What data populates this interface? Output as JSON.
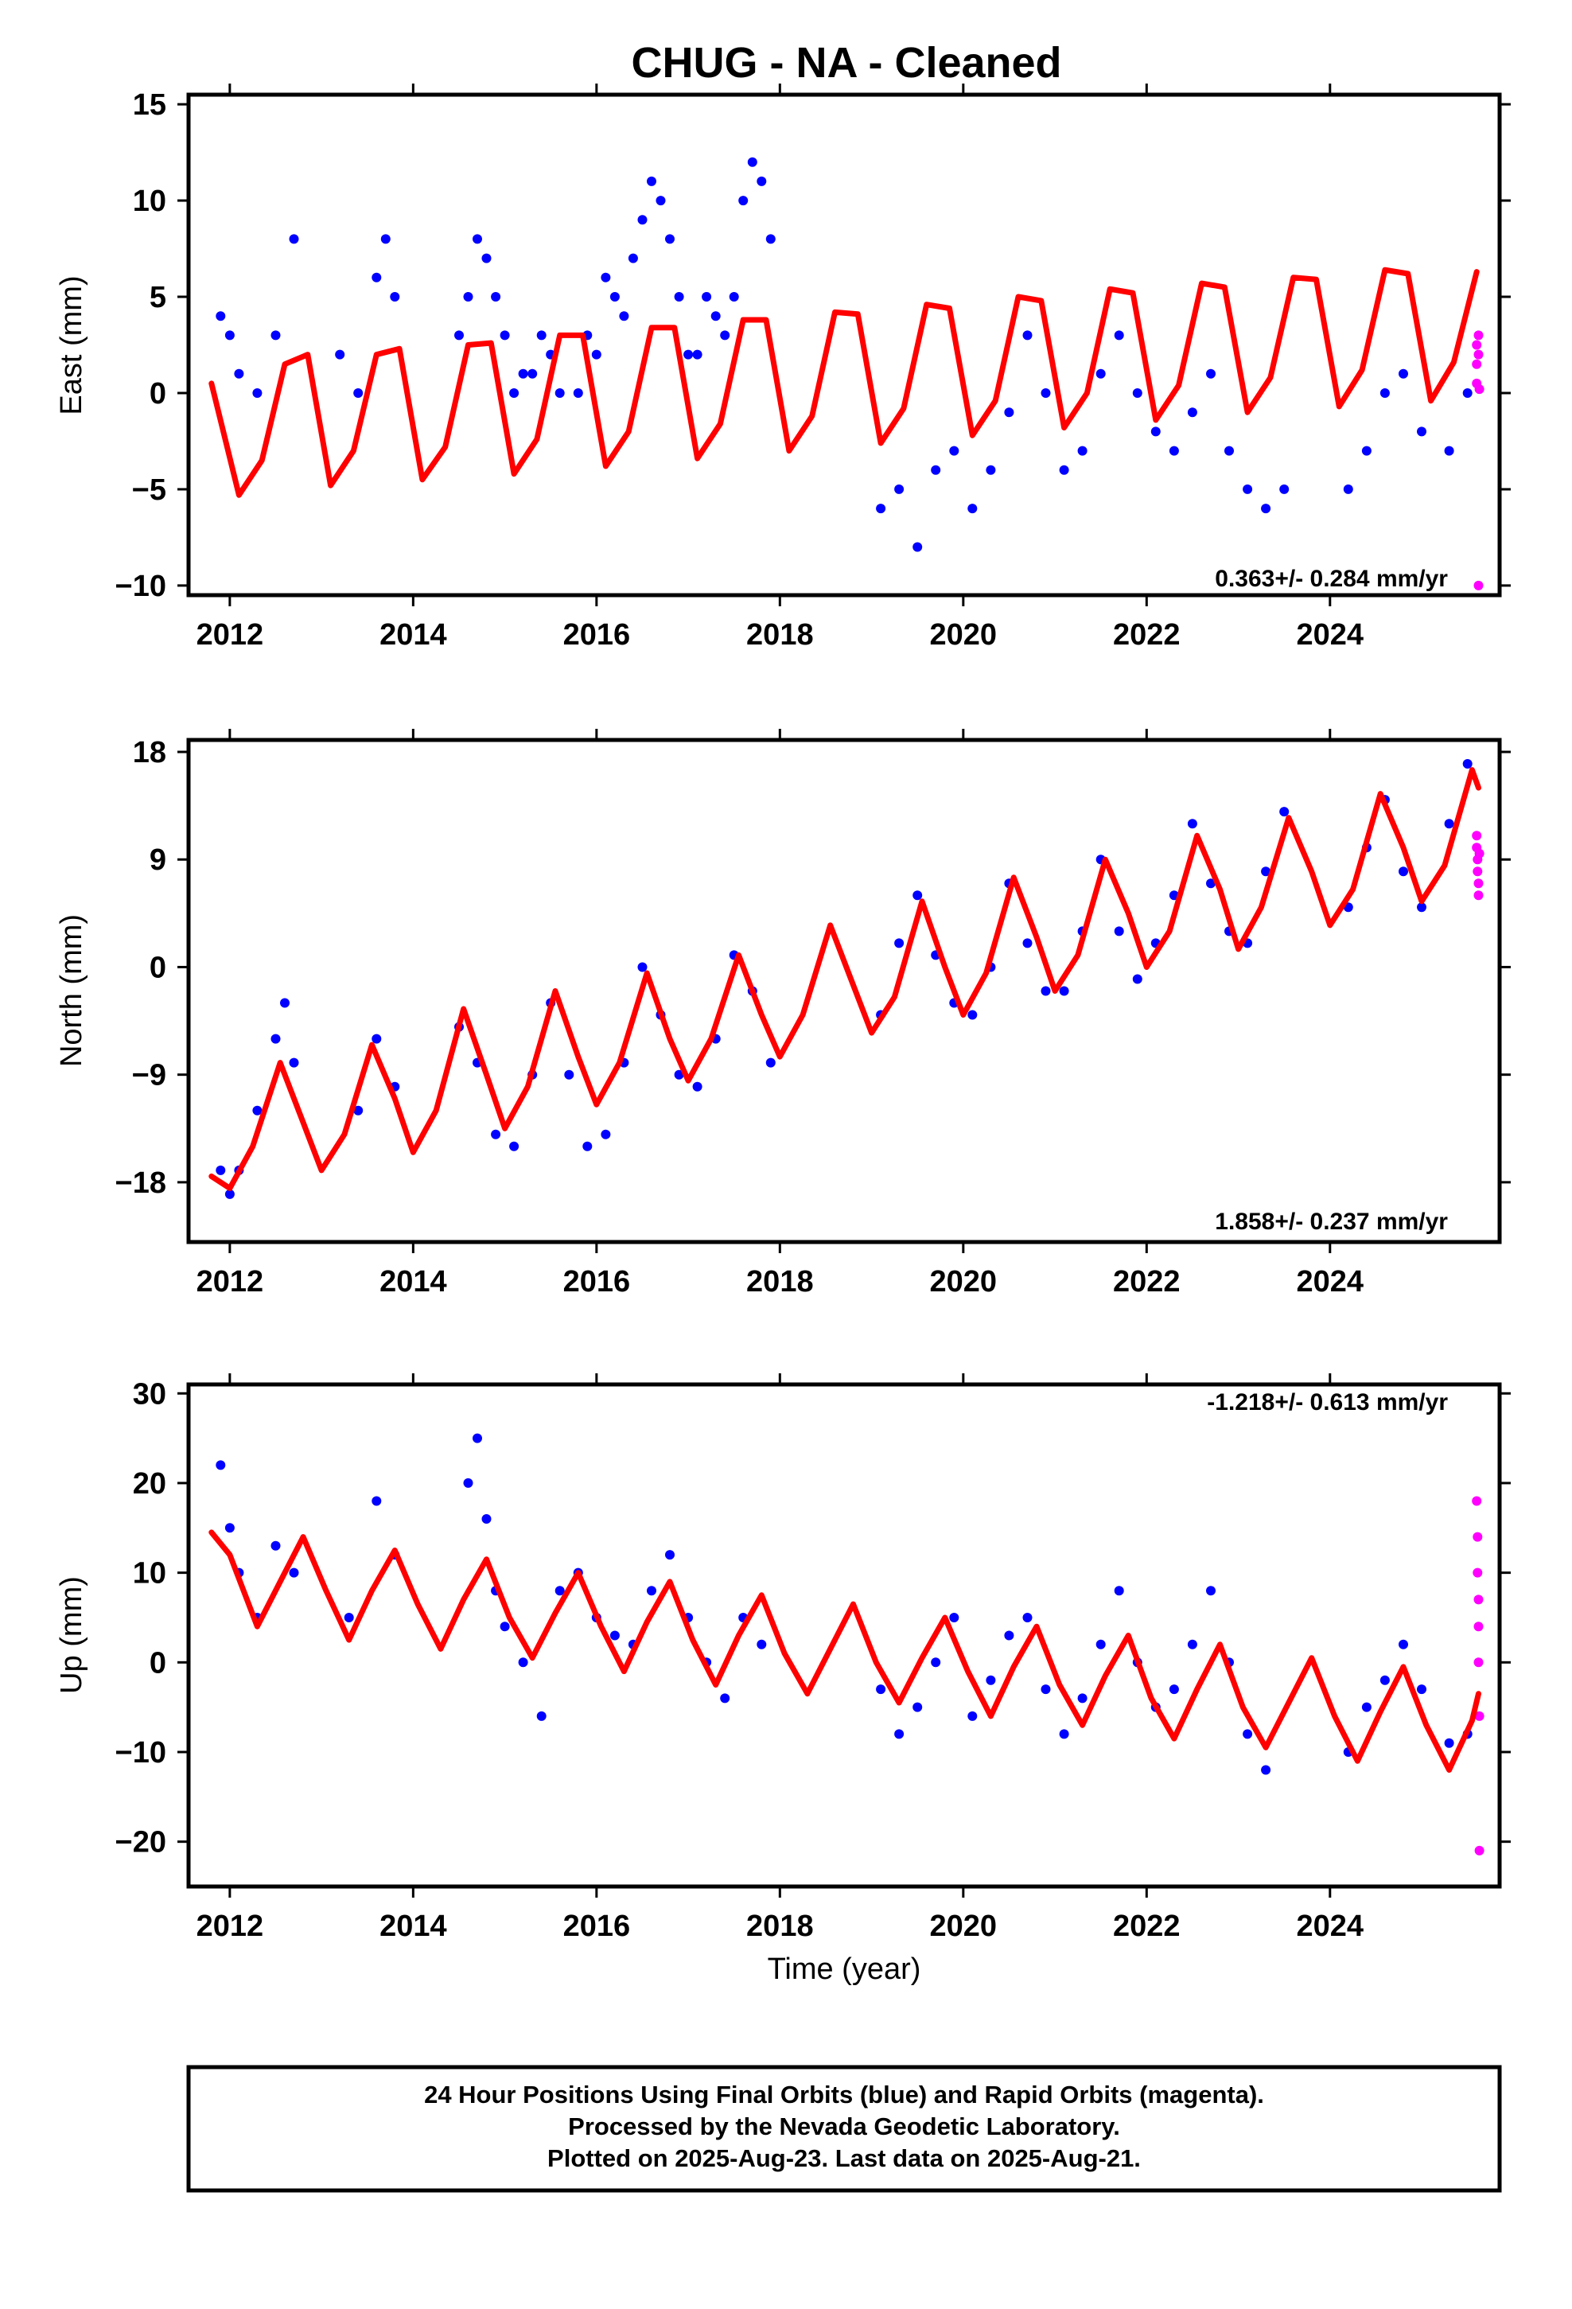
{
  "title": "CHUG  - NA - Cleaned",
  "xlabel": "Time (year)",
  "footer_lines": [
    "24 Hour Positions Using Final Orbits (blue) and Rapid Orbits (magenta).",
    "Processed by the Nevada Geodetic Laboratory.",
    "Plotted on 2025-Aug-23. Last data on 2025-Aug-21."
  ],
  "colors": {
    "final": "#0000ff",
    "rapid": "#ff00ff",
    "model": "#ff0000",
    "frame": "#000000"
  },
  "chart_data": [
    {
      "type": "scatter",
      "ylabel": "East (mm)",
      "rate_text": "0.363+/- 0.284 mm/yr",
      "xlim": [
        2011.55,
        2025.85
      ],
      "ylim": [
        -10.5,
        15.5
      ],
      "xticks": [
        2012,
        2014,
        2016,
        2018,
        2020,
        2022,
        2024
      ],
      "yticks": [
        -10,
        -5,
        0,
        5,
        10,
        15
      ],
      "grid": false,
      "series": [
        {
          "name": "Final Orbits",
          "color": "#0000ff",
          "x": [
            2011.9,
            2012.0,
            2012.1,
            2012.3,
            2012.5,
            2012.7,
            2013.2,
            2013.4,
            2013.6,
            2013.7,
            2013.8,
            2014.5,
            2014.6,
            2014.7,
            2014.8,
            2014.9,
            2015.0,
            2015.1,
            2015.2,
            2015.3,
            2015.4,
            2015.5,
            2015.6,
            2015.8,
            2015.9,
            2016.0,
            2016.1,
            2016.2,
            2016.3,
            2016.4,
            2016.5,
            2016.6,
            2016.7,
            2016.8,
            2016.9,
            2017.0,
            2017.1,
            2017.2,
            2017.3,
            2017.4,
            2017.5,
            2017.6,
            2017.7,
            2017.8,
            2017.9,
            2019.1,
            2019.3,
            2019.5,
            2019.7,
            2019.9,
            2020.1,
            2020.3,
            2020.5,
            2020.7,
            2020.9,
            2021.1,
            2021.3,
            2021.5,
            2021.7,
            2021.9,
            2022.1,
            2022.3,
            2022.5,
            2022.7,
            2022.9,
            2023.1,
            2023.3,
            2023.5,
            2024.2,
            2024.4,
            2024.6,
            2024.8,
            2025.0,
            2025.3,
            2025.5
          ],
          "y": [
            4,
            3,
            1,
            0,
            3,
            8,
            2,
            0,
            6,
            8,
            5,
            3,
            5,
            8,
            7,
            5,
            3,
            0,
            1,
            1,
            3,
            2,
            0,
            0,
            3,
            2,
            6,
            5,
            4,
            7,
            9,
            11,
            10,
            8,
            5,
            2,
            2,
            5,
            4,
            3,
            5,
            10,
            12,
            11,
            8,
            -6,
            -5,
            -8,
            -4,
            -3,
            -6,
            -4,
            -1,
            3,
            0,
            -4,
            -3,
            1,
            3,
            0,
            -2,
            -3,
            -1,
            1,
            -3,
            -5,
            -6,
            -5,
            -5,
            -3,
            0,
            1,
            -2,
            -3,
            0
          ]
        },
        {
          "name": "Rapid Orbits",
          "color": "#ff00ff",
          "x": [
            2025.6,
            2025.6,
            2025.6,
            2025.62,
            2025.62,
            2025.62,
            2025.63
          ],
          "y": [
            2.5,
            1.5,
            0.5,
            3,
            2,
            -10,
            0.2
          ]
        },
        {
          "name": "Model",
          "color": "#ff0000",
          "style": "line",
          "x": [
            2011.8,
            2012.1,
            2012.35,
            2012.6,
            2012.85,
            2013.1,
            2013.35,
            2013.6,
            2013.85,
            2014.1,
            2014.35,
            2014.6,
            2014.85,
            2015.1,
            2015.35,
            2015.6,
            2015.85,
            2016.1,
            2016.35,
            2016.6,
            2016.85,
            2017.1,
            2017.35,
            2017.6,
            2017.85,
            2018.1,
            2018.35,
            2018.6,
            2018.85,
            2019.1,
            2019.35,
            2019.6,
            2019.85,
            2020.1,
            2020.35,
            2020.6,
            2020.85,
            2021.1,
            2021.35,
            2021.6,
            2021.85,
            2022.1,
            2022.35,
            2022.6,
            2022.85,
            2023.1,
            2023.35,
            2023.6,
            2023.85,
            2024.1,
            2024.35,
            2024.6,
            2024.85,
            2025.1,
            2025.35,
            2025.6
          ],
          "y": [
            0.5,
            -5.3,
            -3.5,
            1.5,
            2.0,
            -4.8,
            -3.0,
            2.0,
            2.3,
            -4.5,
            -2.8,
            2.5,
            2.6,
            -4.2,
            -2.4,
            3.0,
            3.0,
            -3.8,
            -2.0,
            3.4,
            3.4,
            -3.4,
            -1.6,
            3.8,
            3.8,
            -3.0,
            -1.2,
            4.2,
            4.1,
            -2.6,
            -0.8,
            4.6,
            4.4,
            -2.2,
            -0.4,
            5.0,
            4.8,
            -1.8,
            0.0,
            5.4,
            5.2,
            -1.4,
            0.4,
            5.7,
            5.5,
            -1.0,
            0.8,
            6.0,
            5.9,
            -0.7,
            1.2,
            6.4,
            6.2,
            -0.4,
            1.6,
            6.3
          ]
        }
      ]
    },
    {
      "type": "scatter",
      "ylabel": "North (mm)",
      "rate_text": "1.858+/- 0.237 mm/yr",
      "xlim": [
        2011.55,
        2025.85
      ],
      "ylim": [
        -23,
        19
      ],
      "xticks": [
        2012,
        2014,
        2016,
        2018,
        2020,
        2022,
        2024
      ],
      "yticks": [
        -18,
        -9,
        0,
        9,
        18
      ],
      "grid": false,
      "series": [
        {
          "name": "Final Orbits",
          "color": "#0000ff",
          "x": [
            2011.9,
            2012.0,
            2012.1,
            2012.3,
            2012.5,
            2012.6,
            2012.7,
            2013.4,
            2013.6,
            2013.8,
            2014.5,
            2014.7,
            2014.9,
            2015.1,
            2015.3,
            2015.5,
            2015.7,
            2015.9,
            2016.1,
            2016.3,
            2016.5,
            2016.7,
            2016.9,
            2017.1,
            2017.3,
            2017.5,
            2017.7,
            2017.9,
            2019.1,
            2019.3,
            2019.5,
            2019.7,
            2019.9,
            2020.1,
            2020.3,
            2020.5,
            2020.7,
            2020.9,
            2021.1,
            2021.3,
            2021.5,
            2021.7,
            2021.9,
            2022.1,
            2022.3,
            2022.5,
            2022.7,
            2022.9,
            2023.1,
            2023.3,
            2023.5,
            2024.2,
            2024.4,
            2024.6,
            2024.8,
            2025.0,
            2025.3,
            2025.5
          ],
          "y": [
            -17,
            -19,
            -17,
            -12,
            -6,
            -3,
            -8,
            -12,
            -6,
            -10,
            -5,
            -8,
            -14,
            -15,
            -9,
            -3,
            -9,
            -15,
            -14,
            -8,
            0,
            -4,
            -9,
            -10,
            -6,
            1,
            -2,
            -8,
            -4,
            2,
            6,
            1,
            -3,
            -4,
            0,
            7,
            2,
            -2,
            -2,
            3,
            9,
            3,
            -1,
            2,
            6,
            12,
            7,
            3,
            2,
            8,
            13,
            5,
            10,
            14,
            8,
            5,
            12,
            17
          ]
        },
        {
          "name": "Rapid Orbits",
          "color": "#ff00ff",
          "x": [
            2025.6,
            2025.6,
            2025.61,
            2025.61,
            2025.62,
            2025.62,
            2025.63
          ],
          "y": [
            11,
            10,
            9,
            8,
            7,
            6,
            9.5
          ]
        },
        {
          "name": "Model",
          "color": "#ff0000",
          "style": "line",
          "x": [
            2011.8,
            2012.0,
            2012.25,
            2012.55,
            2012.8,
            2013.0,
            2013.25,
            2013.55,
            2013.8,
            2014.0,
            2014.25,
            2014.55,
            2014.8,
            2015.0,
            2015.25,
            2015.55,
            2015.8,
            2016.0,
            2016.25,
            2016.55,
            2016.8,
            2017.0,
            2017.25,
            2017.55,
            2017.8,
            2018.0,
            2018.25,
            2018.55,
            2018.8,
            2019.0,
            2019.25,
            2019.55,
            2019.8,
            2020.0,
            2020.25,
            2020.55,
            2020.8,
            2021.0,
            2021.25,
            2021.55,
            2021.8,
            2022.0,
            2022.25,
            2022.55,
            2022.8,
            2023.0,
            2023.25,
            2023.55,
            2023.8,
            2024.0,
            2024.25,
            2024.55,
            2024.8,
            2025.0,
            2025.25,
            2025.55,
            2025.62
          ],
          "y": [
            -17.5,
            -18.5,
            -15,
            -8,
            -13,
            -17,
            -14,
            -6.5,
            -11,
            -15.5,
            -12,
            -3.5,
            -9,
            -13.5,
            -10,
            -2,
            -7.5,
            -11.5,
            -8,
            -0.5,
            -6,
            -9.5,
            -6,
            1,
            -4,
            -7.5,
            -4,
            3.5,
            -1.5,
            -5.5,
            -2.5,
            5.5,
            0,
            -4,
            -0.5,
            7.5,
            2.5,
            -2,
            1,
            9,
            4.5,
            0,
            3,
            11,
            6.5,
            1.5,
            5,
            12.5,
            8,
            3.5,
            6.5,
            14.5,
            10,
            5.5,
            8.5,
            16.5,
            15
          ]
        }
      ]
    },
    {
      "type": "scatter",
      "ylabel": "Up (mm)",
      "rate_text": "-1.218+/- 0.613 mm/yr",
      "xlim": [
        2011.55,
        2025.85
      ],
      "ylim": [
        -25,
        31
      ],
      "xticks": [
        2012,
        2014,
        2016,
        2018,
        2020,
        2022,
        2024
      ],
      "yticks": [
        -20,
        -10,
        0,
        10,
        20,
        30
      ],
      "grid": false,
      "series": [
        {
          "name": "Final Orbits",
          "color": "#0000ff",
          "x": [
            2011.9,
            2012.0,
            2012.1,
            2012.3,
            2012.5,
            2012.7,
            2013.3,
            2013.6,
            2013.8,
            2014.6,
            2014.7,
            2014.8,
            2014.9,
            2015.0,
            2015.2,
            2015.4,
            2015.6,
            2015.8,
            2016.0,
            2016.2,
            2016.4,
            2016.6,
            2016.8,
            2017.0,
            2017.2,
            2017.4,
            2017.6,
            2017.8,
            2019.1,
            2019.3,
            2019.5,
            2019.7,
            2019.9,
            2020.1,
            2020.3,
            2020.5,
            2020.7,
            2020.9,
            2021.1,
            2021.3,
            2021.5,
            2021.7,
            2021.9,
            2022.1,
            2022.3,
            2022.5,
            2022.7,
            2022.9,
            2023.1,
            2023.3,
            2024.2,
            2024.4,
            2024.6,
            2024.8,
            2025.0,
            2025.3,
            2025.5
          ],
          "y": [
            22,
            15,
            10,
            5,
            13,
            10,
            5,
            18,
            12,
            20,
            25,
            16,
            8,
            4,
            0,
            -6,
            8,
            10,
            5,
            3,
            2,
            8,
            12,
            5,
            0,
            -4,
            5,
            2,
            -3,
            -8,
            -5,
            0,
            5,
            -6,
            -2,
            3,
            5,
            -3,
            -8,
            -4,
            2,
            8,
            0,
            -5,
            -3,
            2,
            8,
            0,
            -8,
            -12,
            -10,
            -5,
            -2,
            2,
            -3,
            -9,
            -8
          ]
        },
        {
          "name": "Rapid Orbits",
          "color": "#ff00ff",
          "x": [
            2025.6,
            2025.61,
            2025.61,
            2025.62,
            2025.62,
            2025.62,
            2025.63,
            2025.63
          ],
          "y": [
            18,
            14,
            10,
            7,
            4,
            0,
            -6,
            -21
          ]
        },
        {
          "name": "Model",
          "color": "#ff0000",
          "style": "line",
          "x": [
            2011.8,
            2012.0,
            2012.3,
            2012.55,
            2012.8,
            2013.05,
            2013.3,
            2013.55,
            2013.8,
            2014.05,
            2014.3,
            2014.55,
            2014.8,
            2015.05,
            2015.3,
            2015.55,
            2015.8,
            2016.05,
            2016.3,
            2016.55,
            2016.8,
            2017.05,
            2017.3,
            2017.55,
            2017.8,
            2018.05,
            2018.3,
            2018.55,
            2018.8,
            2019.05,
            2019.3,
            2019.55,
            2019.8,
            2020.05,
            2020.3,
            2020.55,
            2020.8,
            2021.05,
            2021.3,
            2021.55,
            2021.8,
            2022.05,
            2022.3,
            2022.55,
            2022.8,
            2023.05,
            2023.3,
            2023.55,
            2023.8,
            2024.05,
            2024.3,
            2024.55,
            2024.8,
            2025.05,
            2025.3,
            2025.55,
            2025.62
          ],
          "y": [
            14.5,
            12,
            4,
            9,
            14,
            8,
            2.5,
            8,
            12.5,
            6.5,
            1.5,
            7,
            11.5,
            5,
            0.5,
            5.5,
            10,
            4,
            -1,
            4.5,
            9,
            2.5,
            -2.5,
            3,
            7.5,
            1,
            -3.5,
            1.5,
            6.5,
            0,
            -4.5,
            0.5,
            5,
            -1,
            -6,
            -0.5,
            4,
            -2.5,
            -7,
            -1.5,
            3,
            -4,
            -8.5,
            -3,
            2,
            -5,
            -9.5,
            -4.5,
            0.5,
            -6,
            -11,
            -5.5,
            -0.5,
            -7,
            -12,
            -6.5,
            -3.5
          ]
        }
      ]
    }
  ]
}
